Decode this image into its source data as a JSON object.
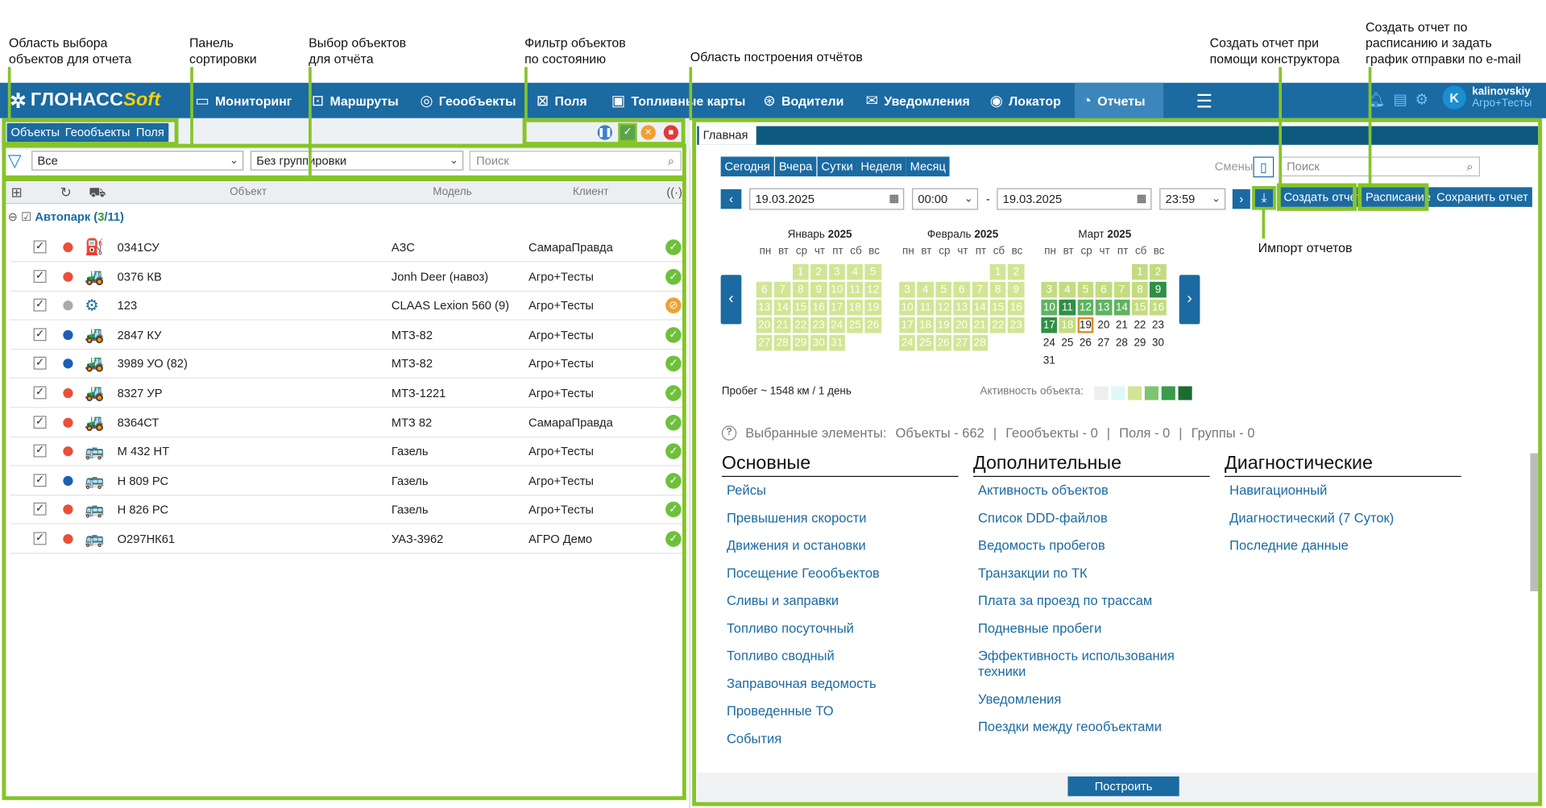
{
  "annotations": {
    "obj_area": "Область выбора\nобъектов для отчета",
    "sort_panel": "Панель\nсортировки",
    "obj_select": "Выбор объектов\nдля отчёта",
    "state_filter": "Фильтр объектов\nпо состоянию",
    "build_area": "Область построения отчётов",
    "constructor": "Создать отчет при\nпомощи конструктора",
    "schedule": "Создать отчет по\nрасписанию и задать\nграфик отправки по e-mail",
    "import": "Импорт отчетов"
  },
  "app": {
    "logo": "ГЛОНАСС",
    "logo_soft": "Soft"
  },
  "nav": [
    {
      "label": "Мониторинг",
      "icon": "monitor-icon"
    },
    {
      "label": "Маршруты",
      "icon": "bus-icon"
    },
    {
      "label": "Геообъекты",
      "icon": "geo-icon"
    },
    {
      "label": "Поля",
      "icon": "field-icon"
    },
    {
      "label": "Топливные карты",
      "icon": "fuel-card-icon"
    },
    {
      "label": "Водители",
      "icon": "steering-wheel-icon"
    },
    {
      "label": "Уведомления",
      "icon": "mail-icon"
    },
    {
      "label": "Локатор",
      "icon": "locator-icon"
    },
    {
      "label": "Отчеты",
      "icon": "reports-icon"
    }
  ],
  "user": {
    "initial": "K",
    "name": "kalinovskiy",
    "org": "Агро+Тесты"
  },
  "left": {
    "tabs": [
      "Объекты",
      "Геообъекты",
      "Поля"
    ],
    "filter_value": "Все",
    "grouping_value": "Без группировки",
    "search_placeholder": "Поиск",
    "columns": {
      "object": "Объект",
      "model": "Модель",
      "client": "Клиент"
    },
    "group": {
      "name": "Автопарк",
      "open": "(",
      "selected": "3",
      "sep": "/",
      "total": "11",
      "close": ")"
    },
    "rows": [
      {
        "object": "0341СУ",
        "model": "АЗС",
        "client": "СамараПравда",
        "dot": "#e8503a",
        "vehicle": "⛽",
        "status": "ok"
      },
      {
        "object": "0376 КВ",
        "model": "Jonh Deer (навоз)",
        "client": "Агро+Тесты",
        "dot": "#e8503a",
        "vehicle": "🚜",
        "status": "ok"
      },
      {
        "object": "123",
        "model": "CLAAS Lexion 560 (9)",
        "client": "Агро+Тесты",
        "dot": "#aaaaaa",
        "vehicle": "⚙",
        "status": "warn"
      },
      {
        "object": "2847 КУ",
        "model": "МТЗ-82",
        "client": "Агро+Тесты",
        "dot": "#1b5fb5",
        "vehicle": "🚜",
        "status": "ok"
      },
      {
        "object": "3989 УО (82)",
        "model": "МТЗ-82",
        "client": "Агро+Тесты",
        "dot": "#1b5fb5",
        "vehicle": "🚜",
        "status": "ok"
      },
      {
        "object": "8327 УР",
        "model": "МТЗ-1221",
        "client": "Агро+Тесты",
        "dot": "#e8503a",
        "vehicle": "🚜",
        "status": "ok"
      },
      {
        "object": "8364СТ",
        "model": "МТЗ 82",
        "client": "СамараПравда",
        "dot": "#e8503a",
        "vehicle": "🚜",
        "status": "ok"
      },
      {
        "object": "М 432 НТ",
        "model": "Газель",
        "client": "Агро+Тесты",
        "dot": "#e8503a",
        "vehicle": "🚌",
        "status": "ok"
      },
      {
        "object": "Н 809 РС",
        "model": "Газель",
        "client": "Агро+Тесты",
        "dot": "#1b5fb5",
        "vehicle": "🚌",
        "status": "ok"
      },
      {
        "object": "Н 826 РС",
        "model": "Газель",
        "client": "Агро+Тесты",
        "dot": "#e8503a",
        "vehicle": "🚌",
        "status": "ok"
      },
      {
        "object": "О297НК61",
        "model": "УАЗ-3962",
        "client": "АГРО Демо",
        "dot": "#e8503a",
        "vehicle": "🚌",
        "status": "ok"
      }
    ]
  },
  "right": {
    "tab": "Главная",
    "periods": [
      "Сегодня",
      "Вчера",
      "Сутки",
      "Неделя",
      "Месяц"
    ],
    "shifts": "Смены",
    "search_placeholder": "Поиск",
    "date_from": "19.03.2025",
    "time_from": "00:00",
    "dash": "-",
    "date_to": "19.03.2025",
    "time_to": "23:59",
    "buttons": {
      "create": "Создать отчет",
      "schedule": "Расписание",
      "save": "Сохранить отчет",
      "build": "Построить"
    },
    "months": [
      {
        "name": "Январь",
        "year": "2025"
      },
      {
        "name": "Февраль",
        "year": "2025"
      },
      {
        "name": "Март",
        "year": "2025"
      }
    ],
    "weekdays": [
      "пн",
      "вт",
      "ср",
      "чт",
      "пт",
      "сб",
      "вс"
    ],
    "mileage": "Пробег ~ 1548 км / 1 день",
    "activity_label": "Активность объекта:",
    "activity_colors": [
      "#eeeeee",
      "#e0f7f7",
      "#d2e594",
      "#7fc470",
      "#3a9a4a",
      "#1e6b30"
    ],
    "selected": {
      "prefix": "Выбранные элементы:",
      "objects": "Объекты - 662",
      "geo": "Геообъекты - 0",
      "fields": "Поля - 0",
      "groups": "Группы - 0",
      "sep": "|"
    },
    "sections": [
      {
        "title": "Основные",
        "links": [
          "Рейсы",
          "Превышения скорости",
          "Движения и остановки",
          "Посещение Геообъектов",
          "Сливы и заправки",
          "Топливо посуточный",
          "Топливо сводный",
          "Заправочная ведомость",
          "Проведенные ТО",
          "События"
        ]
      },
      {
        "title": "Дополнительные",
        "links": [
          "Активность объектов",
          "Список DDD-файлов",
          "Ведомость пробегов",
          "Транзакции по ТК",
          "Плата за проезд по трассам",
          "Подневные пробеги",
          "Эффективность использования техники",
          "Уведомления",
          "Поездки между геообъектами"
        ]
      },
      {
        "title": "Диагностические",
        "links": [
          "Навигационный",
          "Диагностический (7 Суток)",
          "Последние данные"
        ]
      }
    ]
  }
}
